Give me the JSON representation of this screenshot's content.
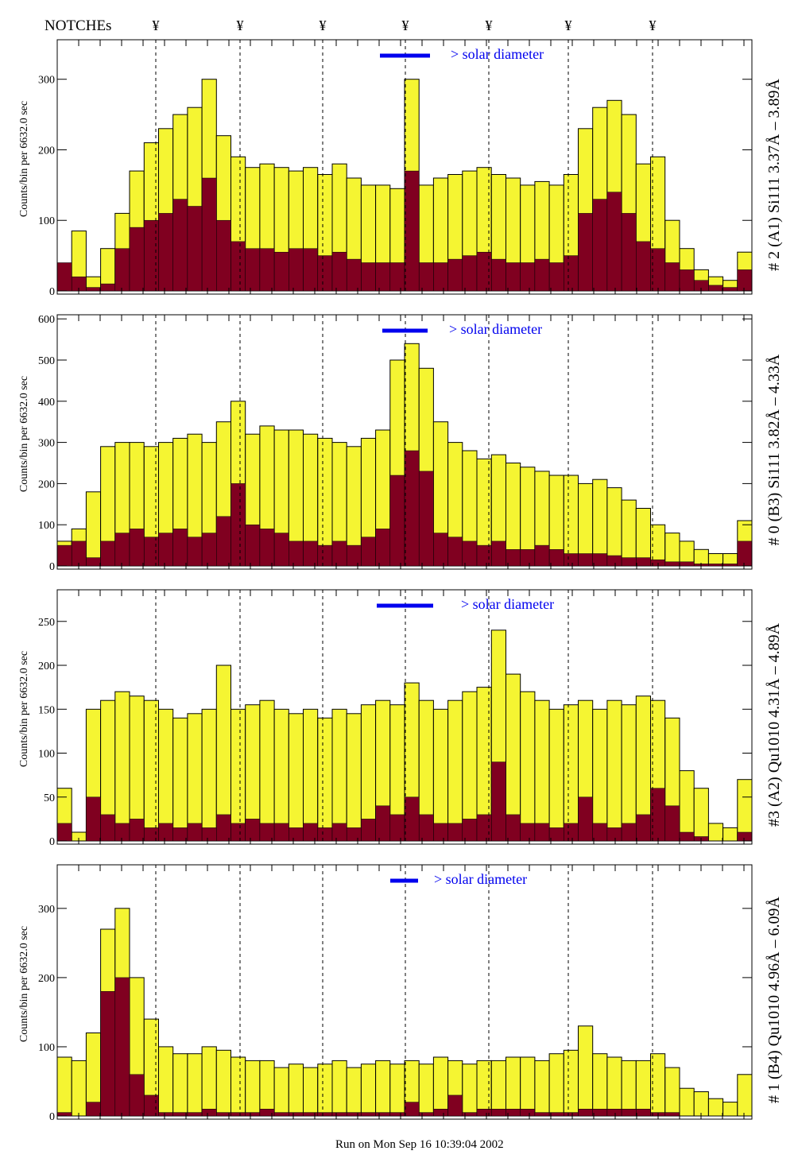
{
  "header": {
    "notches_label": "NOTCHEs",
    "notch_symbol": "¥"
  },
  "footer": {
    "run_text": "Run on Mon Sep 16 10:39:04 2002"
  },
  "legend": {
    "label": "> solar diameter",
    "color": "#0000ee"
  },
  "colors": {
    "total": "#f5f532",
    "subset": "#800020",
    "outline": "#000000"
  },
  "chart_data": [
    {
      "type": "bar",
      "title": "# 2 (A1) Si111  3.37Å – 3.89Å",
      "ylabel": "Counts/bin per   6632.0 sec",
      "ylim": [
        0,
        356
      ],
      "yticks": [
        "0",
        "100",
        "200",
        "300"
      ],
      "ytick_values": [
        0,
        100,
        200,
        300
      ],
      "series": [
        {
          "name": "total",
          "values": [
            30,
            85,
            20,
            60,
            110,
            170,
            210,
            230,
            250,
            260,
            300,
            220,
            190,
            175,
            180,
            175,
            170,
            175,
            165,
            180,
            160,
            150,
            150,
            145,
            300,
            150,
            160,
            165,
            170,
            175,
            165,
            160,
            150,
            155,
            150,
            165,
            230,
            260,
            270,
            250,
            180,
            190,
            100,
            60,
            30,
            20,
            15,
            55
          ]
        },
        {
          "name": "subset",
          "values": [
            40,
            20,
            5,
            10,
            60,
            90,
            100,
            110,
            130,
            120,
            160,
            100,
            70,
            60,
            60,
            55,
            60,
            60,
            50,
            55,
            45,
            40,
            40,
            40,
            170,
            40,
            40,
            45,
            50,
            55,
            45,
            40,
            40,
            45,
            40,
            50,
            110,
            130,
            140,
            110,
            70,
            60,
            40,
            30,
            15,
            8,
            5,
            30
          ]
        }
      ]
    },
    {
      "type": "bar",
      "title": "# 0 (B3) Si111  3.82Å – 4.33Å",
      "ylabel": "Counts/bin per   6632.0 sec",
      "ylim": [
        0,
        610
      ],
      "yticks": [
        "0",
        "100",
        "200",
        "300",
        "400",
        "500",
        "600"
      ],
      "ytick_values": [
        0,
        100,
        200,
        300,
        400,
        500,
        600
      ],
      "series": [
        {
          "name": "total",
          "values": [
            60,
            90,
            180,
            290,
            300,
            300,
            290,
            300,
            310,
            320,
            300,
            350,
            400,
            320,
            340,
            330,
            330,
            320,
            310,
            300,
            290,
            310,
            330,
            500,
            540,
            480,
            350,
            300,
            280,
            260,
            270,
            250,
            240,
            230,
            220,
            220,
            200,
            210,
            190,
            160,
            140,
            100,
            80,
            60,
            40,
            30,
            30,
            110
          ]
        },
        {
          "name": "subset",
          "values": [
            50,
            60,
            20,
            60,
            80,
            90,
            70,
            80,
            90,
            70,
            80,
            120,
            200,
            100,
            90,
            80,
            60,
            60,
            50,
            60,
            50,
            70,
            90,
            220,
            280,
            230,
            80,
            70,
            60,
            50,
            60,
            40,
            40,
            50,
            40,
            30,
            30,
            30,
            25,
            20,
            20,
            15,
            10,
            10,
            5,
            5,
            5,
            60
          ]
        }
      ]
    },
    {
      "type": "bar",
      "title": "#3 (A2) Qu1010  4.31Å – 4.89Å",
      "ylabel": "Counts/bin per   6632.0 sec",
      "ylim": [
        0,
        286
      ],
      "yticks": [
        "0",
        "50",
        "100",
        "150",
        "200",
        "250"
      ],
      "ytick_values": [
        0,
        50,
        100,
        150,
        200,
        250
      ],
      "series": [
        {
          "name": "total",
          "values": [
            60,
            10,
            150,
            160,
            170,
            165,
            160,
            150,
            140,
            145,
            150,
            200,
            150,
            155,
            160,
            150,
            145,
            150,
            140,
            150,
            145,
            155,
            160,
            155,
            180,
            160,
            150,
            160,
            170,
            175,
            240,
            190,
            170,
            160,
            150,
            155,
            160,
            150,
            160,
            155,
            165,
            160,
            140,
            80,
            60,
            20,
            15,
            70
          ]
        },
        {
          "name": "subset",
          "values": [
            20,
            0,
            50,
            30,
            20,
            25,
            15,
            20,
            15,
            20,
            15,
            30,
            20,
            25,
            20,
            20,
            15,
            20,
            15,
            20,
            15,
            25,
            40,
            30,
            50,
            30,
            20,
            20,
            25,
            30,
            90,
            30,
            20,
            20,
            15,
            20,
            50,
            20,
            15,
            20,
            30,
            60,
            40,
            10,
            5,
            0,
            0,
            10
          ]
        }
      ]
    },
    {
      "type": "bar",
      "title": "# 1 (B4) Qu1010 4.96Å – 6.09Å",
      "ylabel": "Counts/bin per   6632.0 sec",
      "ylim": [
        0,
        363
      ],
      "yticks": [
        "0",
        "100",
        "200",
        "300"
      ],
      "ytick_values": [
        0,
        100,
        200,
        300
      ],
      "series": [
        {
          "name": "total",
          "values": [
            85,
            80,
            120,
            270,
            300,
            200,
            140,
            100,
            90,
            90,
            100,
            95,
            85,
            80,
            80,
            70,
            75,
            70,
            75,
            80,
            70,
            75,
            80,
            75,
            80,
            75,
            85,
            80,
            75,
            80,
            80,
            85,
            85,
            80,
            90,
            95,
            130,
            90,
            85,
            80,
            80,
            90,
            70,
            40,
            35,
            25,
            20,
            60
          ]
        },
        {
          "name": "subset",
          "values": [
            5,
            0,
            20,
            180,
            200,
            60,
            30,
            5,
            5,
            5,
            10,
            5,
            5,
            5,
            10,
            5,
            5,
            5,
            5,
            5,
            5,
            5,
            5,
            5,
            20,
            5,
            10,
            30,
            5,
            10,
            10,
            10,
            10,
            5,
            5,
            5,
            10,
            10,
            10,
            10,
            10,
            5,
            5,
            0,
            0,
            0,
            0,
            0
          ]
        }
      ]
    }
  ]
}
